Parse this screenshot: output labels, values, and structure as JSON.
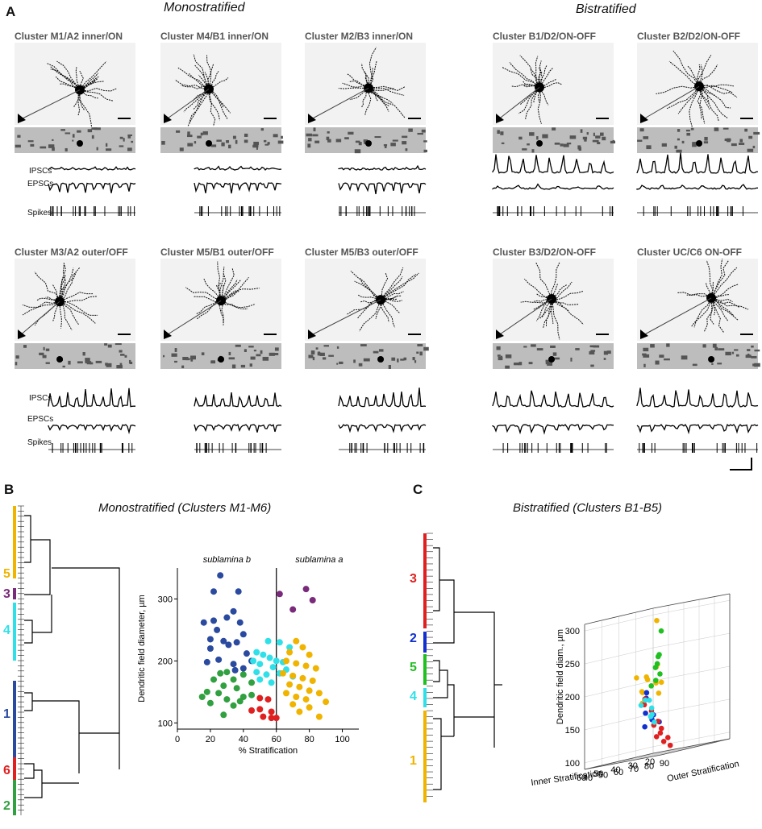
{
  "panel_a": {
    "letter": "A",
    "mono_title": "Monostratified",
    "bi_title": "Bistratified",
    "cells": [
      {
        "title": "Cluster M1/A2 inner/ON"
      },
      {
        "title": "Cluster M4/B1 inner/ON"
      },
      {
        "title": "Cluster M2/B3 inner/ON"
      },
      {
        "title": "Cluster B1/D2/ON-OFF"
      },
      {
        "title": "Cluster B2/D2/ON-OFF"
      },
      {
        "title": "Cluster M3/A2 outer/OFF"
      },
      {
        "title": "Cluster M5/B1 outer/OFF"
      },
      {
        "title": "Cluster M5/B3 outer/OFF"
      },
      {
        "title": "Cluster B3/D2/ON-OFF"
      },
      {
        "title": "Cluster UC/C6 ON-OFF"
      }
    ],
    "trace_labels": {
      "ipsc": "IPSCs",
      "epsc": "EPSCs",
      "spikes": "Spikes"
    }
  },
  "panel_b": {
    "letter": "B",
    "title": "Monostratified (Clusters M1-M6)",
    "clusters": [
      {
        "label": "5",
        "color": "#f0b400"
      },
      {
        "label": "3",
        "color": "#7a2a7a"
      },
      {
        "label": "4",
        "color": "#30e0e8"
      },
      {
        "label": "1",
        "color": "#2a4aa0"
      },
      {
        "label": "6",
        "color": "#e02020"
      },
      {
        "label": "2",
        "color": "#30a040"
      }
    ]
  },
  "panel_c": {
    "letter": "C",
    "title": "Bistratified (Clusters B1-B5)",
    "clusters": [
      {
        "label": "3",
        "color": "#e02020"
      },
      {
        "label": "2",
        "color": "#1030d0"
      },
      {
        "label": "5",
        "color": "#20c020"
      },
      {
        "label": "4",
        "color": "#30e0e8"
      },
      {
        "label": "1",
        "color": "#f0b400"
      }
    ]
  },
  "chart_data": [
    {
      "type": "scatter",
      "title": "",
      "xlabel": "% Stratification",
      "ylabel": "Dendritic field diameter, µm",
      "xlim": [
        0,
        110
      ],
      "ylim": [
        90,
        350
      ],
      "xticks": [
        0,
        20,
        40,
        60,
        80,
        100
      ],
      "yticks": [
        100,
        200,
        300
      ],
      "annotations": [
        "sublamina b",
        "sublamina a"
      ],
      "divider_x": 60,
      "series": [
        {
          "name": "1",
          "color": "#2a4aa0",
          "points": [
            [
              26,
              338
            ],
            [
              22,
              312
            ],
            [
              37,
              312
            ],
            [
              16,
              262
            ],
            [
              22,
              265
            ],
            [
              30,
              270
            ],
            [
              34,
              280
            ],
            [
              38,
              262
            ],
            [
              24,
              250
            ],
            [
              40,
              243
            ],
            [
              20,
              235
            ],
            [
              28,
              232
            ],
            [
              36,
              230
            ],
            [
              20,
              220
            ],
            [
              31,
              226
            ],
            [
              42,
              212
            ],
            [
              25,
              202
            ],
            [
              18,
              198
            ],
            [
              34,
              195
            ],
            [
              45,
              200
            ],
            [
              40,
              188
            ],
            [
              35,
              185
            ]
          ]
        },
        {
          "name": "2",
          "color": "#30a040",
          "points": [
            [
              26,
              180
            ],
            [
              30,
              182
            ],
            [
              40,
              178
            ],
            [
              22,
              170
            ],
            [
              34,
              170
            ],
            [
              45,
              165
            ],
            [
              28,
              160
            ],
            [
              36,
              156
            ],
            [
              18,
              150
            ],
            [
              25,
              148
            ],
            [
              40,
              142
            ],
            [
              15,
              142
            ],
            [
              30,
              138
            ],
            [
              20,
              132
            ],
            [
              34,
              128
            ],
            [
              28,
              113
            ],
            [
              45,
              145
            ],
            [
              38,
              135
            ]
          ]
        },
        {
          "name": "3",
          "color": "#7a2a7a",
          "points": [
            [
              62,
              308
            ],
            [
              78,
              316
            ],
            [
              82,
              298
            ],
            [
              70,
              283
            ]
          ]
        },
        {
          "name": "4",
          "color": "#30e0e8",
          "points": [
            [
              55,
              232
            ],
            [
              62,
              230
            ],
            [
              68,
              222
            ],
            [
              48,
              214
            ],
            [
              52,
              210
            ],
            [
              56,
              205
            ],
            [
              60,
              200
            ],
            [
              64,
              198
            ],
            [
              46,
              200
            ],
            [
              50,
              195
            ],
            [
              58,
              190
            ],
            [
              66,
              186
            ],
            [
              48,
              182
            ],
            [
              54,
              178
            ],
            [
              62,
              180
            ],
            [
              70,
              175
            ],
            [
              50,
              170
            ],
            [
              57,
              165
            ]
          ]
        },
        {
          "name": "5",
          "color": "#f0b400",
          "points": [
            [
              72,
              232
            ],
            [
              76,
              222
            ],
            [
              68,
              214
            ],
            [
              80,
              210
            ],
            [
              66,
              200
            ],
            [
              72,
              196
            ],
            [
              78,
              192
            ],
            [
              84,
              188
            ],
            [
              64,
              180
            ],
            [
              70,
              176
            ],
            [
              76,
              172
            ],
            [
              82,
              168
            ],
            [
              68,
              162
            ],
            [
              74,
              158
            ],
            [
              80,
              152
            ],
            [
              86,
              148
            ],
            [
              66,
              148
            ],
            [
              72,
              142
            ],
            [
              78,
              138
            ],
            [
              90,
              134
            ],
            [
              70,
              130
            ],
            [
              80,
              125
            ],
            [
              86,
              110
            ],
            [
              74,
              118
            ]
          ]
        },
        {
          "name": "6",
          "color": "#e02020",
          "points": [
            [
              50,
              140
            ],
            [
              55,
              138
            ],
            [
              45,
              120
            ],
            [
              50,
              122
            ],
            [
              57,
              118
            ],
            [
              52,
              110
            ],
            [
              57,
              108
            ],
            [
              60,
              108
            ]
          ]
        }
      ]
    },
    {
      "type": "scatter",
      "title": "",
      "xlabel": "Inner Stratification",
      "ylabel": "Dendritic field diam., µm",
      "zlabel": "Outer Stratification",
      "inner_ticks": [
        20,
        30,
        40,
        50,
        60
      ],
      "outer_ticks": [
        40,
        50,
        60,
        70,
        80,
        90
      ],
      "zticks": [
        100,
        150,
        200,
        250,
        300
      ],
      "series": [
        {
          "name": "1",
          "color": "#f0b400",
          "points": [
            [
              34,
              58,
              292
            ],
            [
              30,
              54,
              225
            ],
            [
              36,
              60,
              222
            ],
            [
              40,
              58,
              210
            ],
            [
              34,
              52,
              205
            ],
            [
              44,
              56,
              212
            ],
            [
              38,
              62,
              198
            ],
            [
              44,
              60,
              188
            ],
            [
              40,
              66,
              182
            ],
            [
              48,
              64,
              190
            ],
            [
              42,
              70,
              198
            ],
            [
              46,
              62,
              172
            ],
            [
              50,
              68,
              176
            ]
          ]
        },
        {
          "name": "2",
          "color": "#1030d0",
          "points": [
            [
              56,
              76,
              188
            ],
            [
              58,
              78,
              180
            ],
            [
              62,
              82,
              158
            ],
            [
              52,
              76,
              152
            ],
            [
              60,
              84,
              146
            ],
            [
              54,
              82,
              140
            ],
            [
              66,
              86,
              138
            ]
          ]
        },
        {
          "name": "3",
          "color": "#e02020",
          "points": [
            [
              48,
              66,
              178
            ],
            [
              52,
              70,
              170
            ],
            [
              46,
              68,
              158
            ],
            [
              44,
              70,
              140
            ],
            [
              50,
              74,
              136
            ],
            [
              42,
              70,
              128
            ],
            [
              48,
              76,
              122
            ],
            [
              52,
              78,
              118
            ],
            [
              40,
              72,
              112
            ],
            [
              46,
              76,
              108
            ],
            [
              44,
              78,
              100
            ]
          ]
        },
        {
          "name": "4",
          "color": "#30e0e8",
          "points": [
            [
              24,
              42,
              172
            ],
            [
              30,
              46,
              174
            ],
            [
              36,
              50,
              168
            ],
            [
              28,
              48,
              160
            ],
            [
              26,
              46,
              150
            ],
            [
              34,
              54,
              148
            ],
            [
              30,
              52,
              138
            ]
          ]
        },
        {
          "name": "5",
          "color": "#20c020",
          "points": [
            [
              60,
              90,
              278
            ],
            [
              54,
              82,
              242
            ],
            [
              60,
              88,
              240
            ],
            [
              48,
              74,
              228
            ],
            [
              58,
              84,
              224
            ],
            [
              50,
              78,
              212
            ],
            [
              56,
              82,
              204
            ],
            [
              64,
              88,
              198
            ]
          ]
        }
      ]
    }
  ]
}
